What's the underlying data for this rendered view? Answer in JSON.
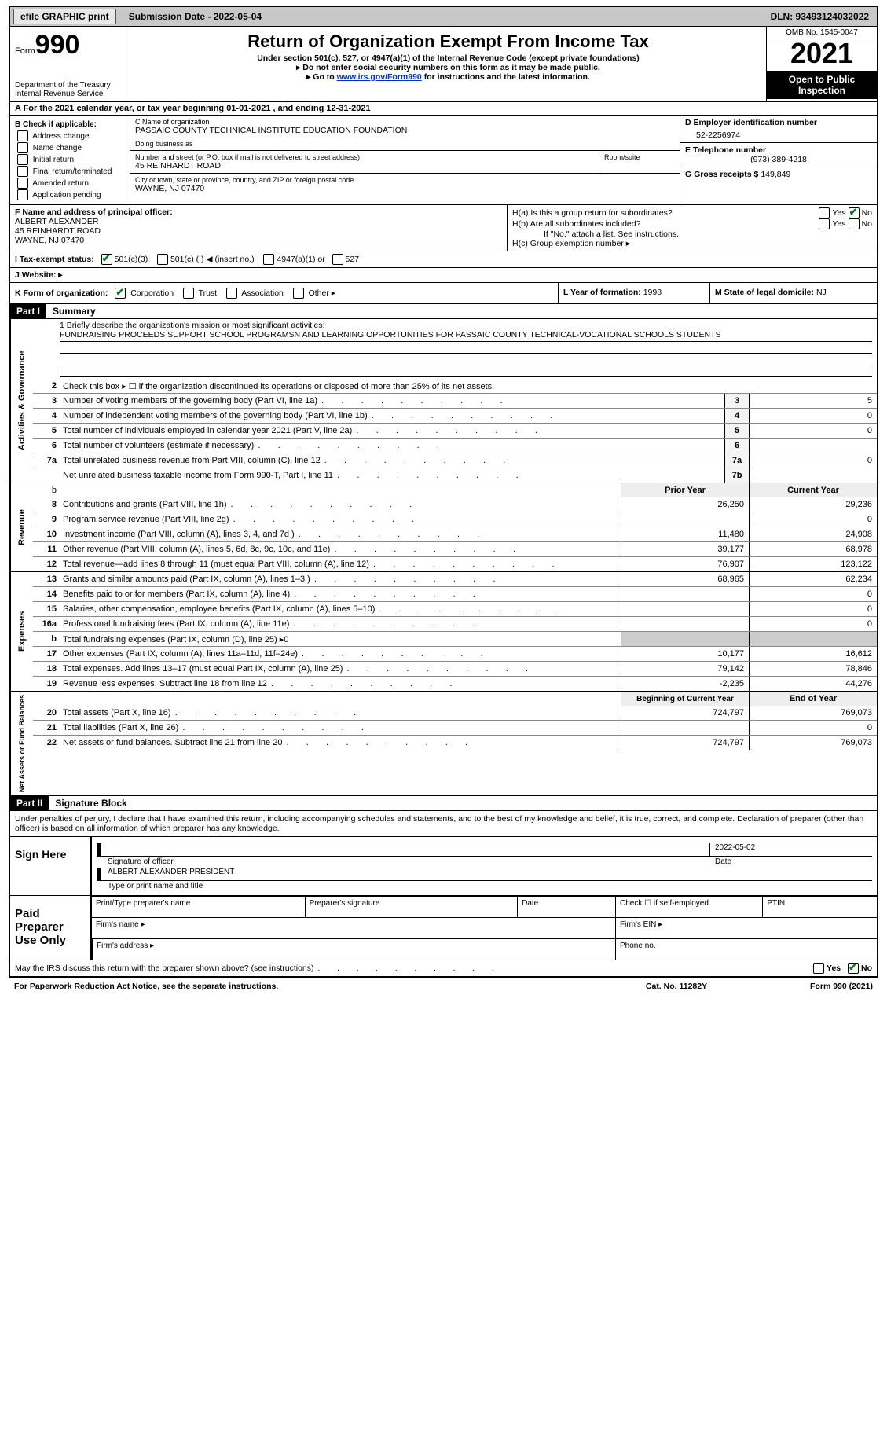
{
  "topbar": {
    "efile": "efile GRAPHIC print",
    "submission": "Submission Date - 2022-05-04",
    "dln": "DLN: 93493124032022"
  },
  "header": {
    "form": "Form",
    "num": "990",
    "dept": "Department of the Treasury\nInternal Revenue Service",
    "title": "Return of Organization Exempt From Income Tax",
    "sub1": "Under section 501(c), 527, or 4947(a)(1) of the Internal Revenue Code (except private foundations)",
    "sub2": "▸ Do not enter social security numbers on this form as it may be made public.",
    "sub3_pre": "▸ Go to ",
    "sub3_link": "www.irs.gov/Form990",
    "sub3_post": " for instructions and the latest information.",
    "omb": "OMB No. 1545-0047",
    "year": "2021",
    "open": "Open to Public Inspection"
  },
  "rowA": "A For the 2021 calendar year, or tax year beginning 01-01-2021   , and ending 12-31-2021",
  "colB": {
    "lbl": "B Check if applicable:",
    "items": [
      "Address change",
      "Name change",
      "Initial return",
      "Final return/terminated",
      "Amended return",
      "Application pending"
    ]
  },
  "colC": {
    "name_lbl": "C Name of organization",
    "name": "PASSAIC COUNTY TECHNICAL INSTITUTE EDUCATION FOUNDATION",
    "dba_lbl": "Doing business as",
    "addr_lbl": "Number and street (or P.O. box if mail is not delivered to street address)",
    "room_lbl": "Room/suite",
    "addr": "45 REINHARDT ROAD",
    "city_lbl": "City or town, state or province, country, and ZIP or foreign postal code",
    "city": "WAYNE, NJ  07470"
  },
  "colD": {
    "ein_lbl": "D Employer identification number",
    "ein": "52-2256974",
    "tel_lbl": "E Telephone number",
    "tel": "(973) 389-4218",
    "gross_lbl": "G Gross receipts $",
    "gross": "149,849"
  },
  "rowF": {
    "lbl": "F Name and address of principal officer:",
    "name": "ALBERT ALEXANDER",
    "addr1": "45 REINHARDT ROAD",
    "addr2": "WAYNE, NJ  07470"
  },
  "rowH": {
    "a": "H(a)  Is this a group return for subordinates?",
    "b": "H(b)  Are all subordinates included?",
    "bnote": "If \"No,\" attach a list. See instructions.",
    "c": "H(c)  Group exemption number ▸"
  },
  "rowI": "I  Tax-exempt status:",
  "rowI_opts": [
    "501(c)(3)",
    "501(c) (  ) ◀ (insert no.)",
    "4947(a)(1) or",
    "527"
  ],
  "rowJ": "J  Website: ▸",
  "rowK": "K Form of organization:",
  "rowK_opts": [
    "Corporation",
    "Trust",
    "Association",
    "Other ▸"
  ],
  "rowL_lbl": "L Year of formation:",
  "rowL_val": "1998",
  "rowM_lbl": "M State of legal domicile:",
  "rowM_val": "NJ",
  "part1": "Part I",
  "part1_title": "Summary",
  "mission": {
    "lbl": "1  Briefly describe the organization's mission or most significant activities:",
    "text": "FUNDRAISING PROCEEDS SUPPORT SCHOOL PROGRAMSN AND LEARNING OPPORTUNITIES FOR PASSAIC COUNTY TECHNICAL-VOCATIONAL SCHOOLS STUDENTS"
  },
  "gov_label": "Activities & Governance",
  "rev_label": "Revenue",
  "exp_label": "Expenses",
  "net_label": "Net Assets or Fund Balances",
  "lines_gov": [
    {
      "n": "2",
      "d": "Check this box ▸ ☐  if the organization discontinued its operations or disposed of more than 25% of its net assets.",
      "nobox": true
    },
    {
      "n": "3",
      "d": "Number of voting members of the governing body (Part VI, line 1a)",
      "box": "3",
      "v": "5"
    },
    {
      "n": "4",
      "d": "Number of independent voting members of the governing body (Part VI, line 1b)",
      "box": "4",
      "v": "0"
    },
    {
      "n": "5",
      "d": "Total number of individuals employed in calendar year 2021 (Part V, line 2a)",
      "box": "5",
      "v": "0"
    },
    {
      "n": "6",
      "d": "Total number of volunteers (estimate if necessary)",
      "box": "6",
      "v": ""
    },
    {
      "n": "7a",
      "d": "Total unrelated business revenue from Part VIII, column (C), line 12",
      "box": "7a",
      "v": "0"
    },
    {
      "n": "",
      "d": "Net unrelated business taxable income from Form 990-T, Part I, line 11",
      "box": "7b",
      "v": ""
    }
  ],
  "hdr_prior": "Prior Year",
  "hdr_current": "Current Year",
  "lines_rev": [
    {
      "n": "8",
      "d": "Contributions and grants (Part VIII, line 1h)",
      "p": "26,250",
      "c": "29,236"
    },
    {
      "n": "9",
      "d": "Program service revenue (Part VIII, line 2g)",
      "p": "",
      "c": "0"
    },
    {
      "n": "10",
      "d": "Investment income (Part VIII, column (A), lines 3, 4, and 7d )",
      "p": "11,480",
      "c": "24,908"
    },
    {
      "n": "11",
      "d": "Other revenue (Part VIII, column (A), lines 5, 6d, 8c, 9c, 10c, and 11e)",
      "p": "39,177",
      "c": "68,978"
    },
    {
      "n": "12",
      "d": "Total revenue—add lines 8 through 11 (must equal Part VIII, column (A), line 12)",
      "p": "76,907",
      "c": "123,122"
    }
  ],
  "lines_exp": [
    {
      "n": "13",
      "d": "Grants and similar amounts paid (Part IX, column (A), lines 1–3 )",
      "p": "68,965",
      "c": "62,234"
    },
    {
      "n": "14",
      "d": "Benefits paid to or for members (Part IX, column (A), line 4)",
      "p": "",
      "c": "0"
    },
    {
      "n": "15",
      "d": "Salaries, other compensation, employee benefits (Part IX, column (A), lines 5–10)",
      "p": "",
      "c": "0"
    },
    {
      "n": "16a",
      "d": "Professional fundraising fees (Part IX, column (A), line 11e)",
      "p": "",
      "c": "0"
    },
    {
      "n": "b",
      "d": "Total fundraising expenses (Part IX, column (D), line 25) ▸0",
      "grey": true
    },
    {
      "n": "17",
      "d": "Other expenses (Part IX, column (A), lines 11a–11d, 11f–24e)",
      "p": "10,177",
      "c": "16,612"
    },
    {
      "n": "18",
      "d": "Total expenses. Add lines 13–17 (must equal Part IX, column (A), line 25)",
      "p": "79,142",
      "c": "78,846"
    },
    {
      "n": "19",
      "d": "Revenue less expenses. Subtract line 18 from line 12",
      "p": "-2,235",
      "c": "44,276"
    }
  ],
  "hdr_begin": "Beginning of Current Year",
  "hdr_end": "End of Year",
  "lines_net": [
    {
      "n": "20",
      "d": "Total assets (Part X, line 16)",
      "p": "724,797",
      "c": "769,073"
    },
    {
      "n": "21",
      "d": "Total liabilities (Part X, line 26)",
      "p": "",
      "c": "0"
    },
    {
      "n": "22",
      "d": "Net assets or fund balances. Subtract line 21 from line 20",
      "p": "724,797",
      "c": "769,073"
    }
  ],
  "part2": "Part II",
  "part2_title": "Signature Block",
  "sig_text": "Under penalties of perjury, I declare that I have examined this return, including accompanying schedules and statements, and to the best of my knowledge and belief, it is true, correct, and complete. Declaration of preparer (other than officer) is based on all information of which preparer has any knowledge.",
  "sign_here": "Sign Here",
  "sig_date": "2022-05-02",
  "sig_officer_lbl": "Signature of officer",
  "sig_date_lbl": "Date",
  "sig_name": "ALBERT ALEXANDER  PRESIDENT",
  "sig_name_lbl": "Type or print name and title",
  "paid_prep": "Paid Preparer Use Only",
  "prep": {
    "c1": "Print/Type preparer's name",
    "c2": "Preparer's signature",
    "c3": "Date",
    "c4": "Check ☐ if self-employed",
    "c5": "PTIN",
    "firm_name": "Firm's name   ▸",
    "firm_ein": "Firm's EIN ▸",
    "firm_addr": "Firm's address ▸",
    "phone": "Phone no."
  },
  "footer_q": "May the IRS discuss this return with the preparer shown above? (see instructions)",
  "footer_notice": "For Paperwork Reduction Act Notice, see the separate instructions.",
  "footer_cat": "Cat. No. 11282Y",
  "footer_form": "Form 990 (2021)",
  "yes": "Yes",
  "no": "No"
}
